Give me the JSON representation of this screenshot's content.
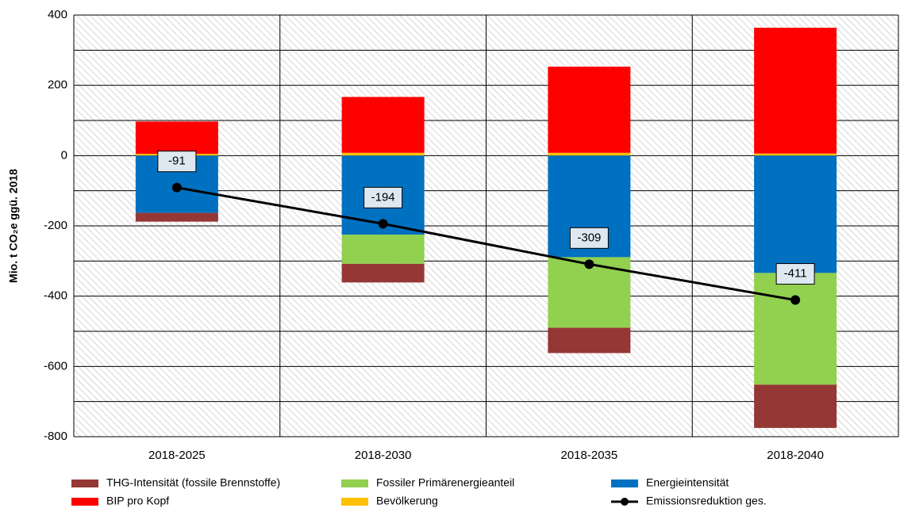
{
  "chart_data": {
    "type": "bar",
    "y_label": "Mio. t CO₂e ggü. 2018",
    "categories": [
      "2018-2025",
      "2018-2030",
      "2018-2035",
      "2018-2040"
    ],
    "series": [
      {
        "name": "THG-Intensität (fossile Brennstoffe)",
        "color": "#953735",
        "values": [
          -25,
          -53,
          -72,
          -123
        ]
      },
      {
        "name": "Fossiler Primärenergieanteil",
        "color": "#92d050",
        "values": [
          0,
          -83,
          -201,
          -318
        ]
      },
      {
        "name": "Energieintensität",
        "color": "#0070c0",
        "values": [
          -163,
          -225,
          -289,
          -334
        ]
      },
      {
        "name": "BIP pro Kopf",
        "color": "#ff0000",
        "values": [
          92,
          159,
          245,
          358
        ]
      },
      {
        "name": "Bevölkerung",
        "color": "#ffc000",
        "values": [
          5,
          8,
          8,
          6
        ]
      },
      {
        "name": "Emissionsreduktion ges.",
        "type": "line",
        "color": "#000000",
        "values": [
          -91,
          -194,
          -309,
          -411
        ]
      }
    ],
    "ylim": [
      -800,
      400
    ],
    "yticks": [
      -800,
      -600,
      -400,
      -200,
      0,
      200,
      400
    ],
    "minor_grid": [
      -700,
      -500,
      -300,
      -100,
      100,
      300
    ],
    "grid": true
  }
}
